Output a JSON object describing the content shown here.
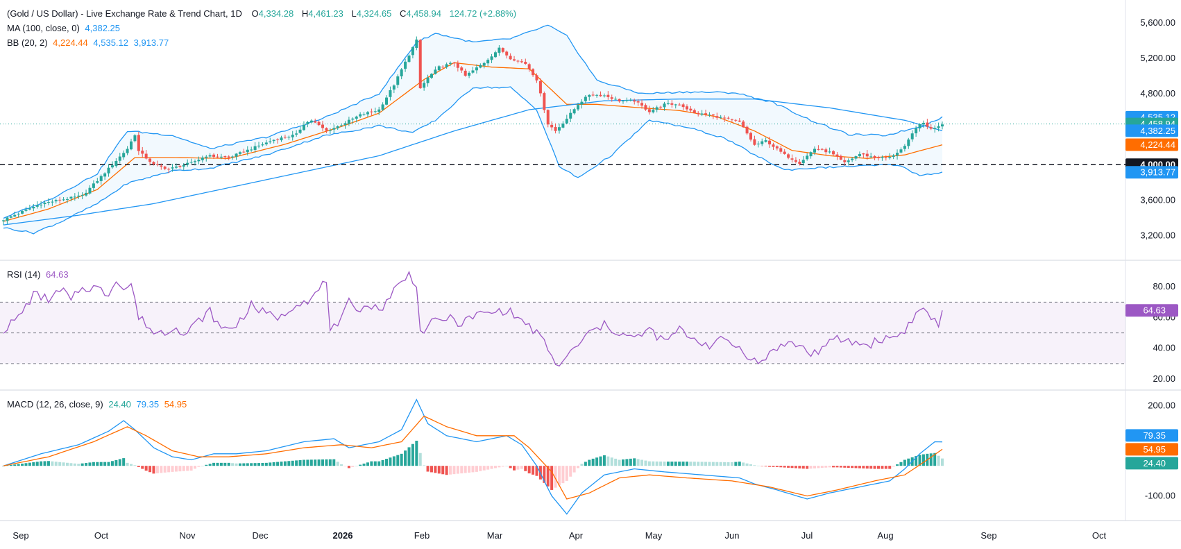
{
  "colors": {
    "up": "#26a69a",
    "down": "#ef5350",
    "bb_band": "#2196f3",
    "bb_basis": "#ff6d00",
    "ma": "#2196f3",
    "rsi": "#9c58c4",
    "macd": "#2196f3",
    "signal": "#ff6d00",
    "grid": "#e0e3eb",
    "text": "#131722"
  },
  "legend": {
    "main": {
      "title": "(Gold / US Dollar) - Live Exchange Rate & Trend Chart, 1D",
      "o_label": "O",
      "o_value": "4,334.28",
      "h_label": "H",
      "h_value": "4,461.23",
      "l_label": "L",
      "l_value": "4,324.65",
      "c_label": "C",
      "c_value": "4,458.94",
      "change": "124.72 (+2.88%)"
    },
    "ma": {
      "label": "MA (100, close, 0)",
      "value": "4,382.25"
    },
    "bb": {
      "label": "BB (20, 2)",
      "basis": "4,224.44",
      "upper": "4,535.12",
      "lower": "3,913.77"
    },
    "rsi": {
      "label": "RSI (14)",
      "value": "64.63"
    },
    "macd": {
      "label": "MACD (12, 26, close, 9)",
      "hist": "24.40",
      "macd": "79.35",
      "signal": "54.95"
    }
  },
  "chart_data": [
    {
      "type": "candlestick",
      "title": "(Gold / US Dollar) - Live Exchange Rate & Trend Chart, 1D",
      "x_ticks": [
        "Sep",
        "Oct",
        "Nov",
        "Dec",
        "2026",
        "Feb",
        "Mar",
        "Apr",
        "May",
        "Jun",
        "Jul",
        "Aug",
        "Sep",
        "Oct"
      ],
      "y_ticks": [
        "3,200.00",
        "3,600.00",
        "4,000.00",
        "4,800.00",
        "5,200.00",
        "5,600.00"
      ],
      "ylim": [
        3000,
        5700
      ],
      "reference_line": {
        "value": 4000,
        "label": "4,000.00"
      },
      "price_labels": [
        {
          "value": 4535.12,
          "text": "4,535.12",
          "color": "#2196f3"
        },
        {
          "value": 4458.94,
          "text": "4,458.94",
          "color": "#26a69a"
        },
        {
          "value": 4382.25,
          "text": "4,382.25",
          "color": "#2196f3"
        },
        {
          "value": 4224.44,
          "text": "4,224.44",
          "color": "#ff6d00"
        },
        {
          "value": 4000.0,
          "text": "4,000.00",
          "color": "#131722"
        },
        {
          "value": 3913.77,
          "text": "3,913.77",
          "color": "#2196f3"
        }
      ],
      "close_anchors": [
        [
          0,
          3380
        ],
        [
          10,
          3560
        ],
        [
          21,
          3650
        ],
        [
          25,
          3820
        ],
        [
          33,
          4180
        ],
        [
          35,
          4340
        ],
        [
          36,
          4150
        ],
        [
          40,
          4000
        ],
        [
          44,
          3950
        ],
        [
          50,
          4020
        ],
        [
          54,
          4100
        ],
        [
          60,
          4080
        ],
        [
          66,
          4180
        ],
        [
          72,
          4280
        ],
        [
          78,
          4340
        ],
        [
          80,
          4460
        ],
        [
          82,
          4500
        ],
        [
          86,
          4380
        ],
        [
          89,
          4430
        ],
        [
          95,
          4560
        ],
        [
          100,
          4620
        ],
        [
          104,
          4900
        ],
        [
          108,
          5240
        ],
        [
          110,
          5400
        ],
        [
          111,
          4860
        ],
        [
          113,
          4980
        ],
        [
          116,
          5100
        ],
        [
          120,
          5150
        ],
        [
          123,
          5000
        ],
        [
          128,
          5150
        ],
        [
          132,
          5310
        ],
        [
          135,
          5200
        ],
        [
          139,
          5140
        ],
        [
          142,
          4960
        ],
        [
          145,
          4460
        ],
        [
          147,
          4380
        ],
        [
          150,
          4520
        ],
        [
          153,
          4680
        ],
        [
          156,
          4790
        ],
        [
          160,
          4780
        ],
        [
          164,
          4720
        ],
        [
          168,
          4720
        ],
        [
          172,
          4600
        ],
        [
          176,
          4680
        ],
        [
          180,
          4680
        ],
        [
          184,
          4580
        ],
        [
          188,
          4560
        ],
        [
          192,
          4520
        ],
        [
          196,
          4480
        ],
        [
          200,
          4220
        ],
        [
          203,
          4270
        ],
        [
          208,
          4110
        ],
        [
          212,
          4020
        ],
        [
          216,
          4180
        ],
        [
          220,
          4140
        ],
        [
          224,
          4020
        ],
        [
          228,
          4120
        ],
        [
          232,
          4080
        ],
        [
          236,
          4080
        ],
        [
          240,
          4200
        ],
        [
          243,
          4420
        ],
        [
          245,
          4470
        ],
        [
          247,
          4400
        ],
        [
          250,
          4459
        ]
      ],
      "ma100_anchors": [
        [
          0,
          3320
        ],
        [
          20,
          3430
        ],
        [
          40,
          3560
        ],
        [
          60,
          3740
        ],
        [
          80,
          3920
        ],
        [
          100,
          4100
        ],
        [
          120,
          4380
        ],
        [
          140,
          4620
        ],
        [
          160,
          4720
        ],
        [
          180,
          4740
        ],
        [
          200,
          4740
        ],
        [
          220,
          4640
        ],
        [
          240,
          4500
        ],
        [
          250,
          4382
        ]
      ],
      "bb_basis_anchors": [
        [
          0,
          3360
        ],
        [
          12,
          3500
        ],
        [
          25,
          3720
        ],
        [
          35,
          4080
        ],
        [
          45,
          4080
        ],
        [
          60,
          4070
        ],
        [
          75,
          4230
        ],
        [
          90,
          4430
        ],
        [
          100,
          4580
        ],
        [
          112,
          4960
        ],
        [
          120,
          5150
        ],
        [
          130,
          5100
        ],
        [
          140,
          5080
        ],
        [
          150,
          4680
        ],
        [
          158,
          4680
        ],
        [
          170,
          4640
        ],
        [
          180,
          4610
        ],
        [
          190,
          4540
        ],
        [
          200,
          4380
        ],
        [
          210,
          4160
        ],
        [
          220,
          4100
        ],
        [
          230,
          4070
        ],
        [
          240,
          4110
        ],
        [
          250,
          4224
        ]
      ],
      "bb_upper_anchors": [
        [
          0,
          3400
        ],
        [
          12,
          3600
        ],
        [
          25,
          3900
        ],
        [
          33,
          4380
        ],
        [
          45,
          4330
        ],
        [
          55,
          4180
        ],
        [
          70,
          4310
        ],
        [
          85,
          4520
        ],
        [
          100,
          4800
        ],
        [
          110,
          5380
        ],
        [
          115,
          5480
        ],
        [
          125,
          5380
        ],
        [
          135,
          5420
        ],
        [
          145,
          5570
        ],
        [
          150,
          5450
        ],
        [
          158,
          4950
        ],
        [
          170,
          4800
        ],
        [
          182,
          4820
        ],
        [
          195,
          4810
        ],
        [
          205,
          4700
        ],
        [
          215,
          4500
        ],
        [
          225,
          4340
        ],
        [
          235,
          4330
        ],
        [
          245,
          4440
        ],
        [
          250,
          4535
        ]
      ],
      "bb_lower_anchors": [
        [
          0,
          3290
        ],
        [
          8,
          3230
        ],
        [
          15,
          3350
        ],
        [
          25,
          3560
        ],
        [
          33,
          3790
        ],
        [
          45,
          3930
        ],
        [
          55,
          3960
        ],
        [
          70,
          4110
        ],
        [
          85,
          4320
        ],
        [
          100,
          4440
        ],
        [
          109,
          4360
        ],
        [
          115,
          4500
        ],
        [
          125,
          4870
        ],
        [
          135,
          4870
        ],
        [
          142,
          4620
        ],
        [
          148,
          3980
        ],
        [
          153,
          3850
        ],
        [
          162,
          4110
        ],
        [
          172,
          4500
        ],
        [
          182,
          4420
        ],
        [
          192,
          4300
        ],
        [
          200,
          4110
        ],
        [
          208,
          3940
        ],
        [
          215,
          3960
        ],
        [
          225,
          3980
        ],
        [
          238,
          4000
        ],
        [
          244,
          3880
        ],
        [
          250,
          3914
        ]
      ]
    },
    {
      "type": "line",
      "title": "RSI (14)",
      "y_ticks": [
        "20.00",
        "40.00",
        "60.00",
        "80.00"
      ],
      "ylim": [
        15,
        95
      ],
      "bands": [
        70,
        50,
        30
      ],
      "last_value": 64.63,
      "anchors": [
        [
          0,
          52
        ],
        [
          4,
          60
        ],
        [
          8,
          75
        ],
        [
          12,
          72
        ],
        [
          16,
          78
        ],
        [
          18,
          70
        ],
        [
          20,
          78
        ],
        [
          24,
          80
        ],
        [
          28,
          75
        ],
        [
          30,
          86
        ],
        [
          32,
          78
        ],
        [
          34,
          82
        ],
        [
          36,
          60
        ],
        [
          38,
          56
        ],
        [
          40,
          50
        ],
        [
          44,
          51
        ],
        [
          46,
          56
        ],
        [
          48,
          48
        ],
        [
          52,
          58
        ],
        [
          55,
          64
        ],
        [
          58,
          52
        ],
        [
          62,
          55
        ],
        [
          66,
          68
        ],
        [
          70,
          62
        ],
        [
          74,
          60
        ],
        [
          78,
          70
        ],
        [
          82,
          72
        ],
        [
          86,
          84
        ],
        [
          87,
          54
        ],
        [
          89,
          52
        ],
        [
          92,
          70
        ],
        [
          95,
          66
        ],
        [
          98,
          68
        ],
        [
          100,
          64
        ],
        [
          104,
          78
        ],
        [
          108,
          88
        ],
        [
          110,
          82
        ],
        [
          111,
          50
        ],
        [
          114,
          56
        ],
        [
          118,
          60
        ],
        [
          122,
          56
        ],
        [
          126,
          62
        ],
        [
          130,
          63
        ],
        [
          134,
          65
        ],
        [
          138,
          58
        ],
        [
          142,
          50
        ],
        [
          145,
          40
        ],
        [
          147,
          28
        ],
        [
          150,
          34
        ],
        [
          153,
          42
        ],
        [
          156,
          50
        ],
        [
          160,
          55
        ],
        [
          164,
          50
        ],
        [
          168,
          46
        ],
        [
          172,
          52
        ],
        [
          176,
          44
        ],
        [
          180,
          52
        ],
        [
          184,
          46
        ],
        [
          188,
          42
        ],
        [
          192,
          46
        ],
        [
          196,
          40
        ],
        [
          200,
          32
        ],
        [
          202,
          30
        ],
        [
          205,
          40
        ],
        [
          209,
          43
        ],
        [
          212,
          42
        ],
        [
          215,
          36
        ],
        [
          218,
          40
        ],
        [
          222,
          46
        ],
        [
          226,
          44
        ],
        [
          230,
          42
        ],
        [
          234,
          46
        ],
        [
          238,
          48
        ],
        [
          240,
          52
        ],
        [
          243,
          62
        ],
        [
          245,
          66
        ],
        [
          247,
          60
        ],
        [
          249,
          56
        ],
        [
          250,
          64.63
        ]
      ]
    },
    {
      "type": "line",
      "title": "MACD (12, 26, close, 9)",
      "y_ticks": [
        "-100.00",
        "0.00",
        "200.00"
      ],
      "ylim": [
        -170,
        240
      ],
      "last_values": {
        "hist": 24.4,
        "macd": 79.35,
        "signal": 54.95
      },
      "macd_anchors": [
        [
          0,
          0
        ],
        [
          10,
          40
        ],
        [
          20,
          70
        ],
        [
          28,
          115
        ],
        [
          32,
          150
        ],
        [
          35,
          120
        ],
        [
          40,
          60
        ],
        [
          45,
          30
        ],
        [
          50,
          20
        ],
        [
          56,
          40
        ],
        [
          62,
          40
        ],
        [
          70,
          50
        ],
        [
          80,
          80
        ],
        [
          88,
          90
        ],
        [
          92,
          60
        ],
        [
          100,
          80
        ],
        [
          106,
          120
        ],
        [
          110,
          220
        ],
        [
          113,
          140
        ],
        [
          118,
          100
        ],
        [
          126,
          80
        ],
        [
          134,
          100
        ],
        [
          138,
          70
        ],
        [
          142,
          0
        ],
        [
          146,
          -100
        ],
        [
          150,
          -160
        ],
        [
          154,
          -90
        ],
        [
          160,
          -30
        ],
        [
          168,
          -10
        ],
        [
          176,
          -20
        ],
        [
          186,
          -30
        ],
        [
          196,
          -40
        ],
        [
          200,
          -60
        ],
        [
          206,
          -80
        ],
        [
          214,
          -110
        ],
        [
          220,
          -90
        ],
        [
          228,
          -70
        ],
        [
          236,
          -50
        ],
        [
          240,
          -10
        ],
        [
          244,
          40
        ],
        [
          248,
          80
        ],
        [
          250,
          79.35
        ]
      ],
      "signal_anchors": [
        [
          0,
          0
        ],
        [
          12,
          30
        ],
        [
          24,
          80
        ],
        [
          33,
          130
        ],
        [
          38,
          100
        ],
        [
          45,
          50
        ],
        [
          52,
          30
        ],
        [
          60,
          30
        ],
        [
          70,
          40
        ],
        [
          80,
          60
        ],
        [
          90,
          70
        ],
        [
          98,
          60
        ],
        [
          106,
          80
        ],
        [
          112,
          165
        ],
        [
          118,
          130
        ],
        [
          126,
          100
        ],
        [
          136,
          100
        ],
        [
          140,
          60
        ],
        [
          146,
          -20
        ],
        [
          150,
          -110
        ],
        [
          156,
          -90
        ],
        [
          164,
          -40
        ],
        [
          172,
          -30
        ],
        [
          182,
          -40
        ],
        [
          194,
          -50
        ],
        [
          204,
          -70
        ],
        [
          214,
          -100
        ],
        [
          222,
          -80
        ],
        [
          232,
          -50
        ],
        [
          240,
          -30
        ],
        [
          246,
          20
        ],
        [
          250,
          54.95
        ]
      ]
    }
  ]
}
